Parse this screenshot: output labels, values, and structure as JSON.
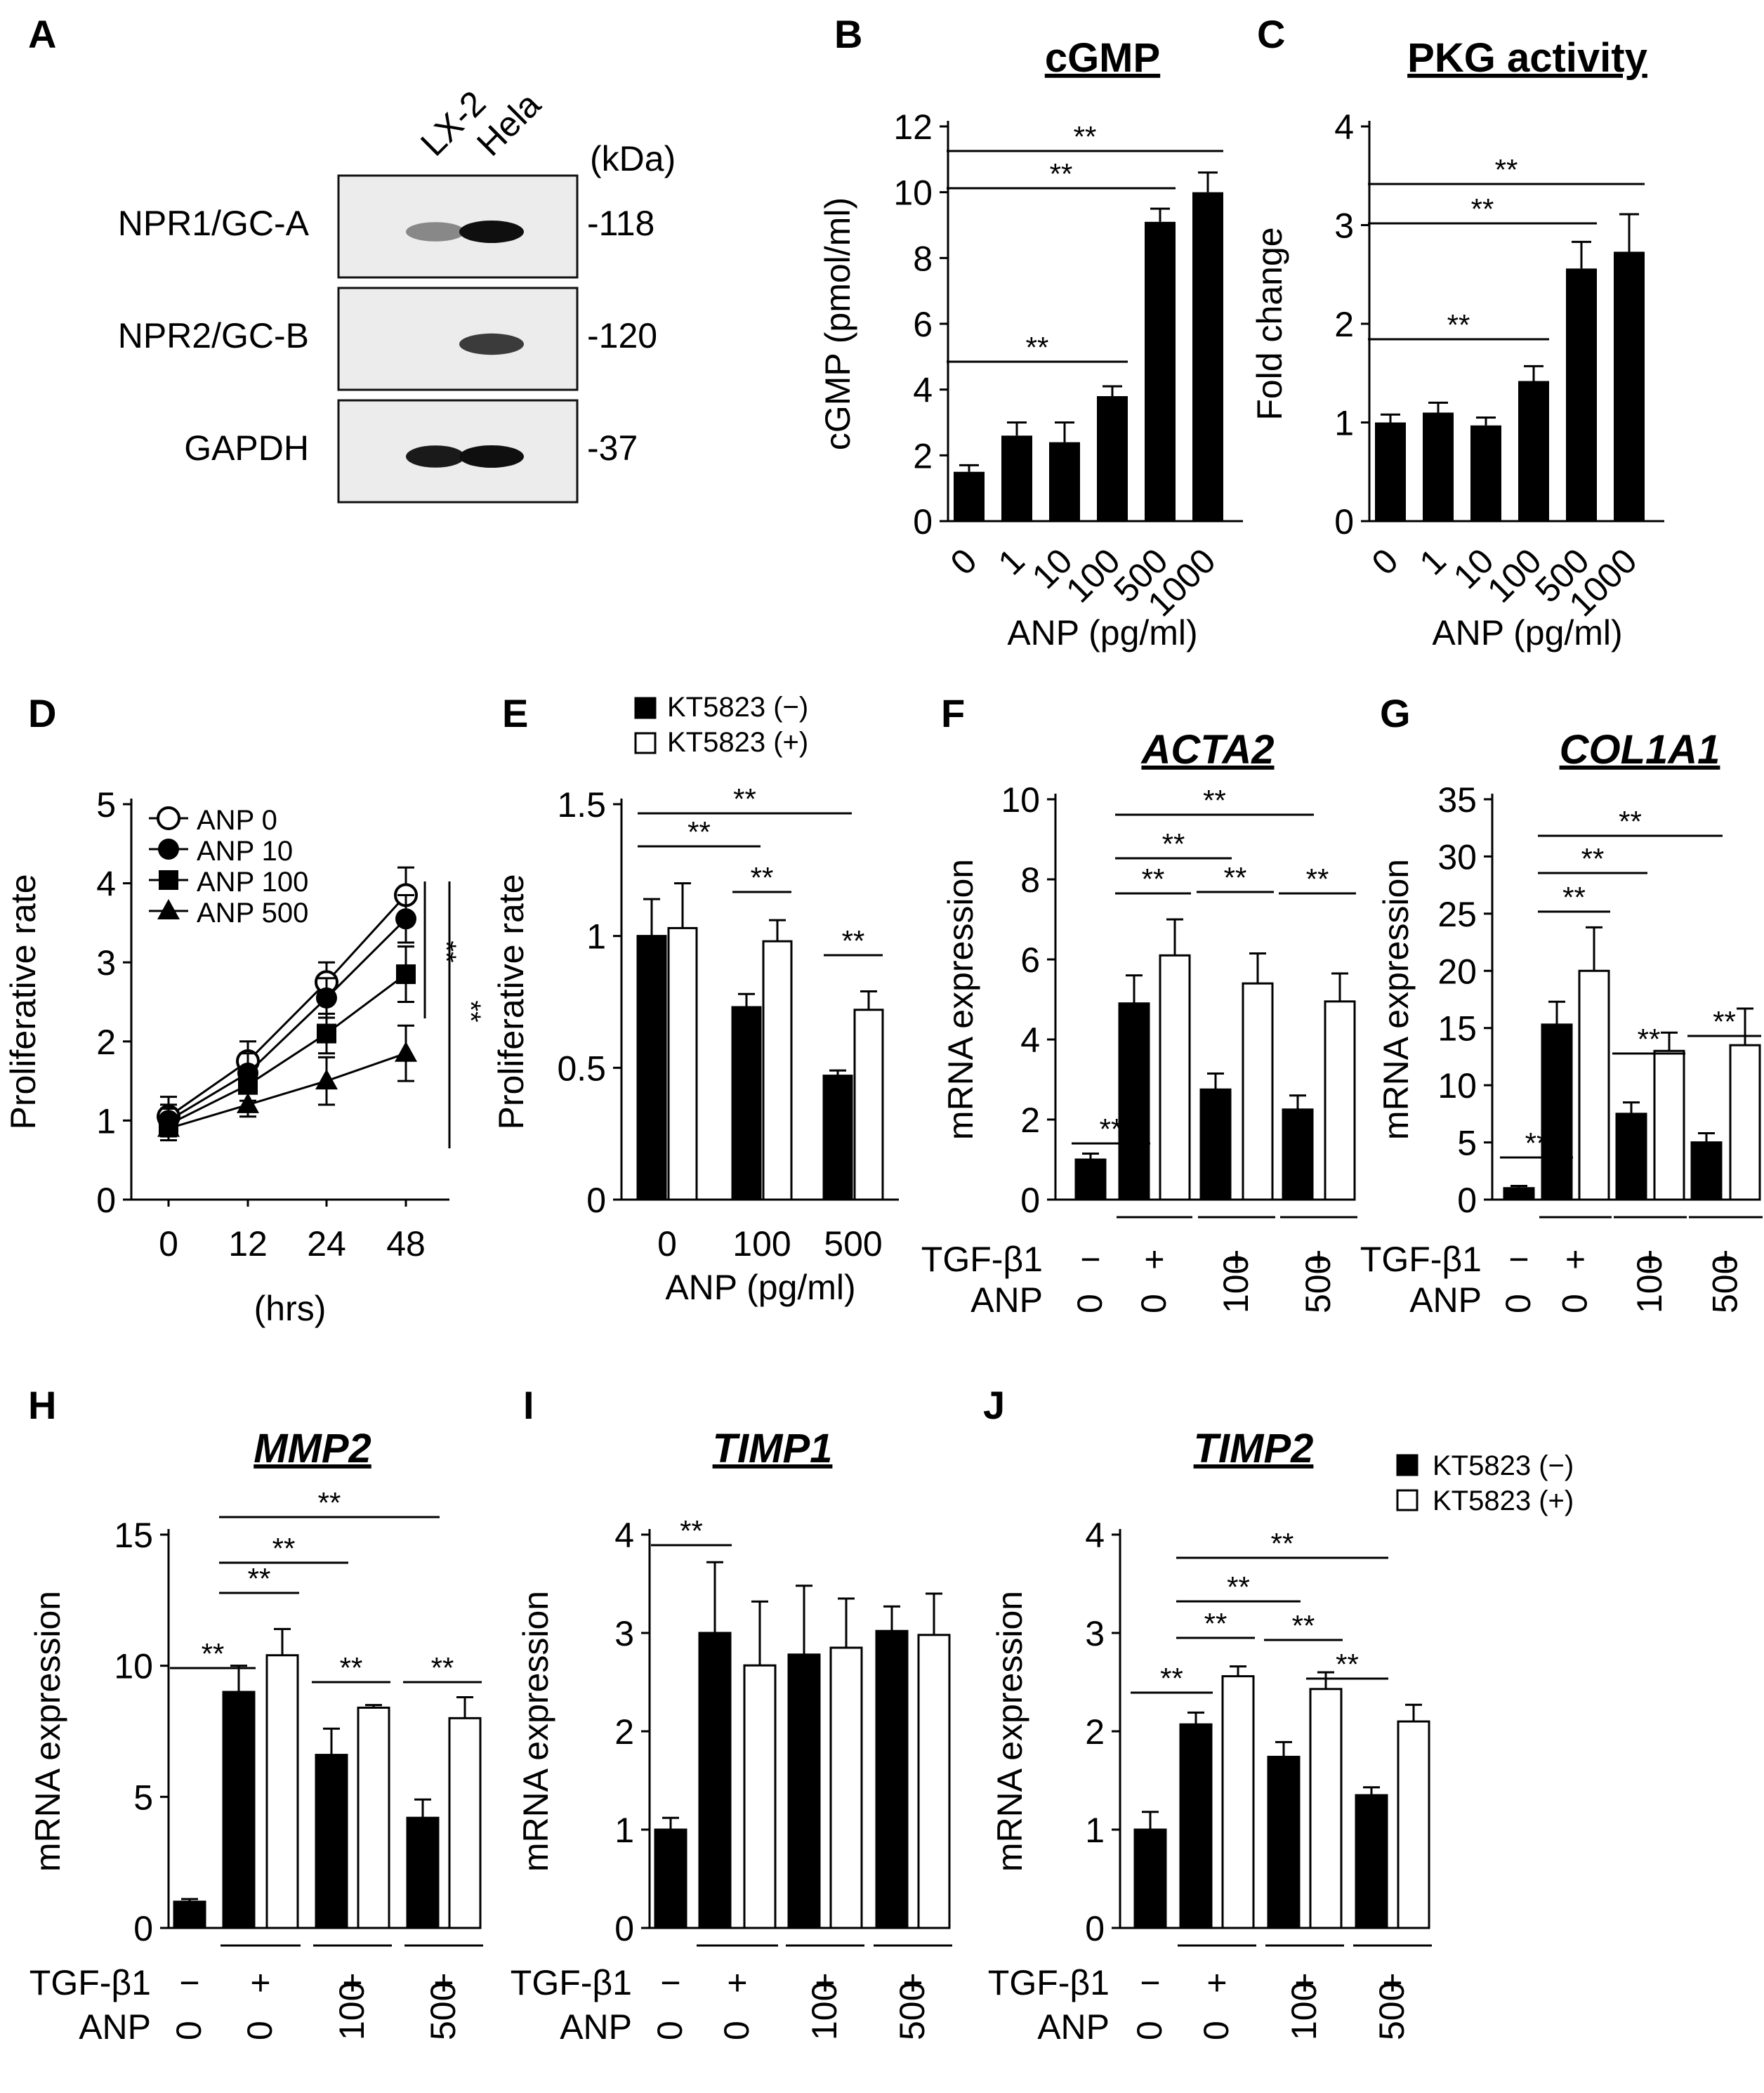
{
  "figure": {
    "panel_a": {
      "letter": "A",
      "lanes": [
        "LX-2",
        "Hela"
      ],
      "unit": "(kDa)",
      "rows": [
        {
          "label": "NPR1/GC-A",
          "marker": "-118",
          "bands": [
            0.45,
            1.0
          ]
        },
        {
          "label": "NPR2/GC-B",
          "marker": "-120",
          "bands": [
            0.0,
            0.8
          ]
        },
        {
          "label": "GAPDH",
          "marker": "-37",
          "bands": [
            0.95,
            1.0
          ]
        }
      ]
    }
  },
  "chart_data": [
    {
      "id": "B",
      "letter": "B",
      "type": "bar",
      "title": "cGMP",
      "title_italic": false,
      "ylabel": "cGMP (pmol/ml)",
      "xlabel": "ANP (pg/ml)",
      "ylim": [
        0,
        12
      ],
      "yticks": [
        "0",
        "2",
        "4",
        "6",
        "8",
        "10",
        "12"
      ],
      "categories": [
        "0",
        "1",
        "10",
        "100",
        "500",
        "1000"
      ],
      "values": [
        1.5,
        2.6,
        2.4,
        3.8,
        9.1,
        10.0
      ],
      "errors": [
        0.2,
        0.4,
        0.6,
        0.3,
        0.4,
        0.6
      ],
      "sig": [
        {
          "from": 0,
          "to": 3,
          "label": "**"
        },
        {
          "from": 0,
          "to": 4,
          "label": "**"
        },
        {
          "from": 0,
          "to": 5,
          "label": "**"
        }
      ]
    },
    {
      "id": "C",
      "letter": "C",
      "type": "bar",
      "title": "PKG activity",
      "title_italic": false,
      "ylabel": "Fold change",
      "xlabel": "ANP (pg/ml)",
      "ylim": [
        0,
        4
      ],
      "yticks": [
        "0",
        "1",
        "2",
        "3",
        "4"
      ],
      "categories": [
        "0",
        "1",
        "10",
        "100",
        "500",
        "1000"
      ],
      "values": [
        1.0,
        1.1,
        0.97,
        1.42,
        2.56,
        2.73
      ],
      "errors": [
        0.08,
        0.1,
        0.08,
        0.15,
        0.27,
        0.38
      ],
      "sig": [
        {
          "from": 0,
          "to": 3,
          "label": "**"
        },
        {
          "from": 0,
          "to": 4,
          "label": "**"
        },
        {
          "from": 0,
          "to": 5,
          "label": "**"
        }
      ]
    },
    {
      "id": "D",
      "letter": "D",
      "type": "line",
      "title": "",
      "ylabel": "Proliferative rate",
      "xlabel": "(hrs)",
      "ylim": [
        0,
        5
      ],
      "yticks": [
        "0",
        "1",
        "2",
        "3",
        "4",
        "5"
      ],
      "x": [
        "0",
        "12",
        "24",
        "48"
      ],
      "series": [
        {
          "name": "ANP 0",
          "marker": "circle-open",
          "values": [
            1.05,
            1.75,
            2.75,
            3.85
          ],
          "errors": [
            0.25,
            0.25,
            0.25,
            0.35
          ]
        },
        {
          "name": "ANP 10",
          "marker": "circle",
          "values": [
            1.0,
            1.6,
            2.55,
            3.55
          ],
          "errors": [
            0.2,
            0.25,
            0.25,
            0.3
          ]
        },
        {
          "name": "ANP 100",
          "marker": "square",
          "values": [
            0.95,
            1.45,
            2.1,
            2.85
          ],
          "errors": [
            0.2,
            0.2,
            0.25,
            0.35
          ]
        },
        {
          "name": "ANP 500",
          "marker": "triangle",
          "values": [
            0.9,
            1.2,
            1.5,
            1.85
          ],
          "errors": [
            0.15,
            0.15,
            0.3,
            0.35
          ]
        }
      ],
      "sig_labels": [
        "**",
        "**"
      ]
    },
    {
      "id": "E",
      "letter": "E",
      "type": "bar",
      "title": "",
      "ylabel": "Proliferative rate",
      "xlabel": "ANP (pg/ml)",
      "ylim": [
        0,
        1.5
      ],
      "yticks": [
        "0",
        "0.5",
        "1",
        "1.5"
      ],
      "categories": [
        "0",
        "100",
        "500"
      ],
      "series": [
        {
          "name": "KT5823 (−)",
          "fill": "#000000",
          "values": [
            1.0,
            0.73,
            0.47
          ],
          "errors": [
            0.14,
            0.05,
            0.02
          ]
        },
        {
          "name": "KT5823 (+)",
          "fill": "#ffffff",
          "values": [
            1.03,
            0.98,
            0.72
          ],
          "errors": [
            0.17,
            0.08,
            0.07
          ]
        }
      ],
      "sig": [
        {
          "from": [
            0,
            0
          ],
          "to": [
            1,
            0
          ],
          "label": "**"
        },
        {
          "from": [
            0,
            0
          ],
          "to": [
            2,
            0
          ],
          "label": "**"
        },
        {
          "from": [
            1,
            0
          ],
          "to": [
            1,
            1
          ],
          "label": "**"
        },
        {
          "from": [
            2,
            0
          ],
          "to": [
            2,
            1
          ],
          "label": "**"
        }
      ]
    },
    {
      "id": "F",
      "letter": "F",
      "type": "bar",
      "title": "ACTA2",
      "title_italic": true,
      "ylabel": "mRNA expression",
      "ylim": [
        0,
        10
      ],
      "yticks": [
        "0",
        "2",
        "4",
        "6",
        "8",
        "10"
      ],
      "row_labels": [
        "TGF-β1",
        "ANP"
      ],
      "tgf": [
        "−",
        "+",
        "+",
        "+"
      ],
      "anp": [
        "0",
        "0",
        "100",
        "500"
      ],
      "bars": [
        {
          "v": 1.0,
          "e": 0.15,
          "fill": "#000000"
        },
        {
          "v": 4.9,
          "e": 0.7,
          "fill": "#000000"
        },
        {
          "v": 6.1,
          "e": 0.9,
          "fill": "#ffffff"
        },
        {
          "v": 2.75,
          "e": 0.4,
          "fill": "#000000"
        },
        {
          "v": 5.4,
          "e": 0.75,
          "fill": "#ffffff"
        },
        {
          "v": 2.25,
          "e": 0.35,
          "fill": "#000000"
        },
        {
          "v": 4.95,
          "e": 0.7,
          "fill": "#ffffff"
        }
      ],
      "sig": [
        {
          "from": 0,
          "to": 1,
          "label": "**"
        },
        {
          "from": 1,
          "to": 2,
          "label": "**"
        },
        {
          "from": 1,
          "to": 3,
          "label": "**"
        },
        {
          "from": 1,
          "to": 5,
          "label": "**"
        },
        {
          "from": 3,
          "to": 4,
          "label": "**"
        },
        {
          "from": 5,
          "to": 6,
          "label": "**"
        }
      ]
    },
    {
      "id": "G",
      "letter": "G",
      "type": "bar",
      "title": "COL1A1",
      "title_italic": true,
      "ylabel": "mRNA expression",
      "ylim": [
        0,
        35
      ],
      "yticks": [
        "0",
        "5",
        "10",
        "15",
        "20",
        "25",
        "30",
        "35"
      ],
      "row_labels": [
        "TGF-β1",
        "ANP"
      ],
      "tgf": [
        "−",
        "+",
        "+",
        "+"
      ],
      "anp": [
        "0",
        "0",
        "100",
        "500"
      ],
      "bars": [
        {
          "v": 1.0,
          "e": 0.2,
          "fill": "#000000"
        },
        {
          "v": 15.3,
          "e": 2.0,
          "fill": "#000000"
        },
        {
          "v": 20.0,
          "e": 3.8,
          "fill": "#ffffff"
        },
        {
          "v": 7.5,
          "e": 1.0,
          "fill": "#000000"
        },
        {
          "v": 13.0,
          "e": 1.6,
          "fill": "#ffffff"
        },
        {
          "v": 5.0,
          "e": 0.8,
          "fill": "#000000"
        },
        {
          "v": 13.5,
          "e": 3.2,
          "fill": "#ffffff"
        }
      ],
      "sig": [
        {
          "from": 0,
          "to": 1,
          "label": "**"
        },
        {
          "from": 1,
          "to": 2,
          "label": "**"
        },
        {
          "from": 1,
          "to": 3,
          "label": "**"
        },
        {
          "from": 1,
          "to": 5,
          "label": "**"
        },
        {
          "from": 3,
          "to": 4,
          "label": "**"
        },
        {
          "from": 5,
          "to": 6,
          "label": "**"
        }
      ]
    },
    {
      "id": "H",
      "letter": "H",
      "type": "bar",
      "title": "MMP2",
      "title_italic": true,
      "ylabel": "mRNA expression",
      "ylim": [
        0,
        15
      ],
      "yticks": [
        "0",
        "5",
        "10",
        "15"
      ],
      "row_labels": [
        "TGF-β1",
        "ANP"
      ],
      "tgf": [
        "−",
        "+",
        "+",
        "+"
      ],
      "anp": [
        "0",
        "0",
        "100",
        "500"
      ],
      "bars": [
        {
          "v": 1.0,
          "e": 0.1,
          "fill": "#000000"
        },
        {
          "v": 9.0,
          "e": 1.0,
          "fill": "#000000"
        },
        {
          "v": 10.4,
          "e": 1.0,
          "fill": "#ffffff"
        },
        {
          "v": 6.6,
          "e": 1.0,
          "fill": "#000000"
        },
        {
          "v": 8.4,
          "e": 0.1,
          "fill": "#ffffff"
        },
        {
          "v": 4.2,
          "e": 0.7,
          "fill": "#000000"
        },
        {
          "v": 8.0,
          "e": 0.8,
          "fill": "#ffffff"
        }
      ],
      "sig": [
        {
          "from": 0,
          "to": 1,
          "label": "**"
        },
        {
          "from": 1,
          "to": 2,
          "label": "**"
        },
        {
          "from": 1,
          "to": 3,
          "label": "**"
        },
        {
          "from": 1,
          "to": 5,
          "label": "**"
        },
        {
          "from": 3,
          "to": 4,
          "label": "**"
        },
        {
          "from": 5,
          "to": 6,
          "label": "**"
        }
      ]
    },
    {
      "id": "I",
      "letter": "I",
      "type": "bar",
      "title": "TIMP1",
      "title_italic": true,
      "ylabel": "mRNA expression",
      "ylim": [
        0,
        4
      ],
      "yticks": [
        "0",
        "1",
        "2",
        "3",
        "4"
      ],
      "row_labels": [
        "TGF-β1",
        "ANP"
      ],
      "tgf": [
        "−",
        "+",
        "+",
        "+"
      ],
      "anp": [
        "0",
        "0",
        "100",
        "500"
      ],
      "bars": [
        {
          "v": 1.0,
          "e": 0.12,
          "fill": "#000000"
        },
        {
          "v": 3.0,
          "e": 0.72,
          "fill": "#000000"
        },
        {
          "v": 2.67,
          "e": 0.65,
          "fill": "#ffffff"
        },
        {
          "v": 2.78,
          "e": 0.7,
          "fill": "#000000"
        },
        {
          "v": 2.85,
          "e": 0.5,
          "fill": "#ffffff"
        },
        {
          "v": 3.02,
          "e": 0.25,
          "fill": "#000000"
        },
        {
          "v": 2.98,
          "e": 0.42,
          "fill": "#ffffff"
        }
      ],
      "sig": [
        {
          "from": 0,
          "to": 1,
          "label": "**"
        }
      ]
    },
    {
      "id": "J",
      "letter": "J",
      "type": "bar",
      "title": "TIMP2",
      "title_italic": true,
      "ylabel": "mRNA expression",
      "ylim": [
        0,
        4
      ],
      "yticks": [
        "0",
        "1",
        "2",
        "3",
        "4"
      ],
      "row_labels": [
        "TGF-β1",
        "ANP"
      ],
      "tgf": [
        "−",
        "+",
        "+",
        "+"
      ],
      "anp": [
        "0",
        "0",
        "100",
        "500"
      ],
      "legend": [
        "KT5823 (−)",
        "KT5823 (+)"
      ],
      "bars": [
        {
          "v": 1.0,
          "e": 0.18,
          "fill": "#000000"
        },
        {
          "v": 2.07,
          "e": 0.12,
          "fill": "#000000"
        },
        {
          "v": 2.56,
          "e": 0.1,
          "fill": "#ffffff"
        },
        {
          "v": 1.74,
          "e": 0.15,
          "fill": "#000000"
        },
        {
          "v": 2.43,
          "e": 0.17,
          "fill": "#ffffff"
        },
        {
          "v": 1.35,
          "e": 0.08,
          "fill": "#000000"
        },
        {
          "v": 2.1,
          "e": 0.17,
          "fill": "#ffffff"
        }
      ],
      "sig": [
        {
          "from": 0,
          "to": 1,
          "label": "**"
        },
        {
          "from": 1,
          "to": 2,
          "label": "**"
        },
        {
          "from": 1,
          "to": 3,
          "label": "**"
        },
        {
          "from": 1,
          "to": 5,
          "label": "**"
        },
        {
          "from": 3,
          "to": 4,
          "label": "**"
        },
        {
          "from": 4,
          "to": 5,
          "label": "**"
        }
      ]
    }
  ]
}
